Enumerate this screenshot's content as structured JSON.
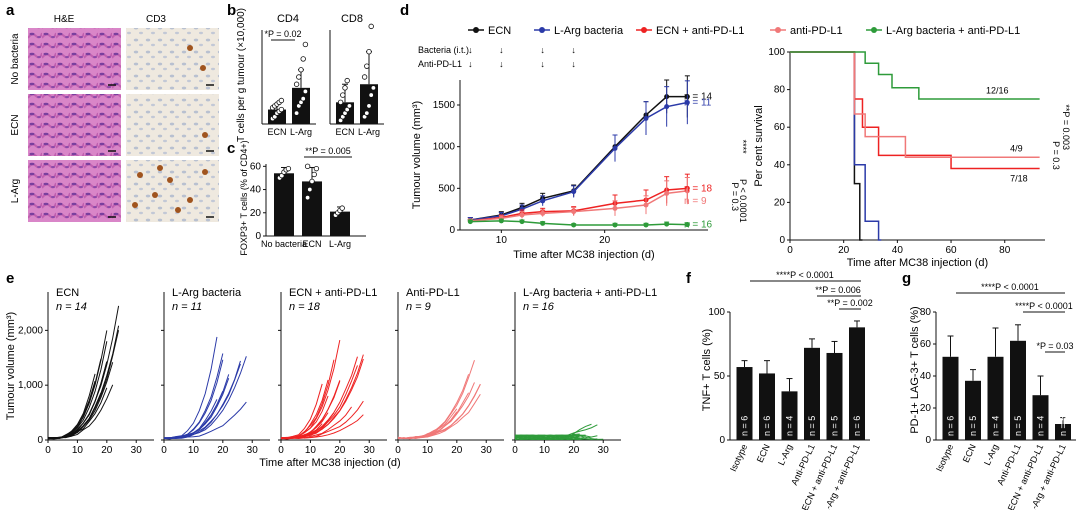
{
  "panels": {
    "a": {
      "letter": "a",
      "col_labels": [
        "H&E",
        "CD3"
      ],
      "row_labels": [
        "No bacteria",
        "ECN",
        "L-Arg"
      ],
      "image_desc": [
        "he-stain-image",
        "cd3-stain-image"
      ]
    },
    "b": {
      "letter": "b"
    },
    "c": {
      "letter": "c"
    },
    "d": {
      "letter": "d"
    },
    "e": {
      "letter": "e"
    },
    "f": {
      "letter": "f"
    },
    "g": {
      "letter": "g"
    }
  },
  "colors": {
    "ECN": "#111111",
    "LArg": "#2b3aa8",
    "ECN_PD": "#ee2222",
    "PD": "#f07878",
    "LArg_PD": "#2e9b3a"
  },
  "chart_data": [
    {
      "id": "b_cd4",
      "type": "bar",
      "title": "CD4",
      "ylabel": "T cells per g tumour (×10,000)",
      "categories": [
        "ECN",
        "L-Arg"
      ],
      "values": [
        0.4,
        1.0
      ],
      "errors": [
        0.15,
        0.5
      ],
      "points": [
        [
          0.15,
          0.2,
          0.3,
          0.35,
          0.4,
          0.45,
          0.5,
          0.55,
          0.6,
          0.65
        ],
        [
          0.3,
          0.5,
          0.6,
          0.7,
          0.9,
          1.1,
          1.3,
          1.5,
          1.8,
          2.2
        ]
      ],
      "annotation": "*P = 0.02"
    },
    {
      "id": "b_cd8",
      "type": "bar",
      "title": "CD8",
      "categories": [
        "ECN",
        "L-Arg"
      ],
      "values": [
        0.6,
        1.1
      ],
      "errors": [
        0.5,
        0.9
      ],
      "points": [
        [
          0.1,
          0.2,
          0.3,
          0.4,
          0.5,
          0.6,
          0.8,
          1.0,
          1.2
        ],
        [
          0.2,
          0.3,
          0.5,
          0.8,
          1.0,
          1.3,
          1.6,
          2.0,
          2.7
        ]
      ]
    },
    {
      "id": "c",
      "type": "bar",
      "ylabel": "FOXP3+ T cells (% of CD4+)",
      "categories": [
        "No bacteria",
        "ECN",
        "L-Arg"
      ],
      "values": [
        54,
        47,
        21
      ],
      "errors": [
        5,
        12,
        4
      ],
      "points": [
        [
          50,
          52,
          55,
          57,
          58
        ],
        [
          33,
          40,
          47,
          53,
          58,
          60
        ],
        [
          18,
          20,
          22,
          24
        ]
      ],
      "yticks": [
        0,
        20,
        40,
        60
      ],
      "annotation": "**P = 0.005"
    },
    {
      "id": "d_growth",
      "type": "line",
      "xlabel": "Time after MC38 injection (d)",
      "ylabel": "Tumour volume (mm³)",
      "xticks": [
        10,
        20
      ],
      "yticks": [
        0,
        500,
        1000,
        1500
      ],
      "legend": [
        "ECN",
        "L-Arg bacteria",
        "ECN + anti-PD-L1",
        "anti-PD-L1",
        "L-Arg bacteria + anti-PD-L1"
      ],
      "bacteria_label": "Bacteria (i.t.)",
      "antipd_label": "Anti-PD-L1",
      "x": [
        7,
        10,
        12,
        14,
        17,
        21,
        24,
        26,
        28
      ],
      "series": [
        {
          "name": "ECN",
          "key": "ECN",
          "y": [
            120,
            180,
            270,
            380,
            470,
            1000,
            1380,
            1600,
            1600
          ],
          "err": [
            30,
            40,
            50,
            60,
            70,
            140,
            160,
            200,
            250
          ],
          "n_label": "n = 14"
        },
        {
          "name": "L-Arg bacteria",
          "key": "LArg",
          "y": [
            120,
            170,
            250,
            350,
            460,
            980,
            1340,
            1480,
            1530
          ],
          "err": [
            30,
            40,
            50,
            60,
            70,
            160,
            200,
            240,
            260
          ],
          "n_label": "n = 11"
        },
        {
          "name": "ECN + anti-PD-L1",
          "key": "ECN_PD",
          "y": [
            110,
            150,
            200,
            220,
            230,
            320,
            360,
            480,
            500
          ],
          "err": [
            20,
            30,
            40,
            40,
            50,
            100,
            120,
            160,
            170
          ],
          "n_label": "n = 18"
        },
        {
          "name": "anti-PD-L1",
          "key": "PD",
          "y": [
            110,
            140,
            180,
            200,
            220,
            260,
            300,
            440,
            470
          ],
          "err": [
            20,
            30,
            40,
            40,
            50,
            90,
            110,
            150,
            160
          ],
          "n_label": "n = 9"
        },
        {
          "name": "L-Arg bacteria + anti-PD-L1",
          "key": "LArg_PD",
          "y": [
            100,
            110,
            100,
            80,
            60,
            60,
            60,
            70,
            65
          ],
          "err": [
            20,
            20,
            20,
            20,
            15,
            20,
            20,
            25,
            20
          ],
          "n_label": "n = 16"
        }
      ],
      "side_labels": [
        "P = 0.3",
        "P < 0.0001",
        "****"
      ]
    },
    {
      "id": "d_survival",
      "type": "line",
      "xlabel": "Time after MC38 injection (d)",
      "ylabel": "Per cent survival",
      "xticks": [
        0,
        20,
        40,
        60,
        80
      ],
      "yticks": [
        0,
        20,
        40,
        60,
        80,
        100
      ],
      "annotations": [
        "12/16",
        "4/9",
        "7/18"
      ],
      "side_labels": [
        "P = 0.3",
        "**P = 0.003"
      ]
    },
    {
      "id": "e_spaghetti",
      "type": "line",
      "xlabel": "Time after MC38 injection (d)",
      "ylabel": "Tumour volume (mm³)",
      "yticks": [
        "0",
        "1,000",
        "2,000"
      ],
      "xticks": [
        0,
        10,
        20,
        30
      ],
      "groups": [
        {
          "name": "ECN",
          "key": "ECN",
          "n": "n = 14"
        },
        {
          "name": "L-Arg bacteria",
          "key": "LArg",
          "n": "n = 11"
        },
        {
          "name": "ECN + anti-PD-L1",
          "key": "ECN_PD",
          "n": "n = 18"
        },
        {
          "name": "Anti-PD-L1",
          "key": "PD",
          "n": "n = 9"
        },
        {
          "name": "L-Arg bacteria + anti-PD-L1",
          "key": "LArg_PD",
          "n": "n = 16"
        }
      ]
    },
    {
      "id": "f",
      "type": "bar",
      "ylabel": "TNF+ T cells (%)",
      "yticks": [
        0,
        50,
        100
      ],
      "categories": [
        "Isotype",
        "ECN",
        "L-Arg",
        "Anti-PD-L1",
        "ECN + anti-PD-L1",
        "L-Arg + anti-PD-L1"
      ],
      "values": [
        57,
        52,
        38,
        72,
        68,
        88
      ],
      "errors": [
        5,
        10,
        10,
        7,
        9,
        5
      ],
      "n_labels": [
        "n = 6",
        "n = 6",
        "n = 4",
        "n = 5",
        "n = 5",
        "n = 6"
      ],
      "annotations": [
        "****P < 0.0001",
        "**P = 0.006",
        "**P = 0.002"
      ]
    },
    {
      "id": "g",
      "type": "bar",
      "ylabel": "PD-1+ LAG-3+ T cells (%)",
      "yticks": [
        0,
        20,
        40,
        60,
        80
      ],
      "categories": [
        "Isotype",
        "ECN",
        "L-Arg",
        "Anti-PD-L1",
        "ECN + anti-PD-L1",
        "L-Arg + anti-PD-L1"
      ],
      "values": [
        52,
        37,
        52,
        62,
        28,
        10
      ],
      "errors": [
        13,
        7,
        18,
        10,
        12,
        4
      ],
      "n_labels": [
        "n = 6",
        "n = 5",
        "n = 4",
        "n = 5",
        "n = 4",
        "n = 5"
      ],
      "annotations": [
        "****P < 0.0001",
        "****P < 0.0001",
        "*P = 0.03"
      ]
    }
  ]
}
